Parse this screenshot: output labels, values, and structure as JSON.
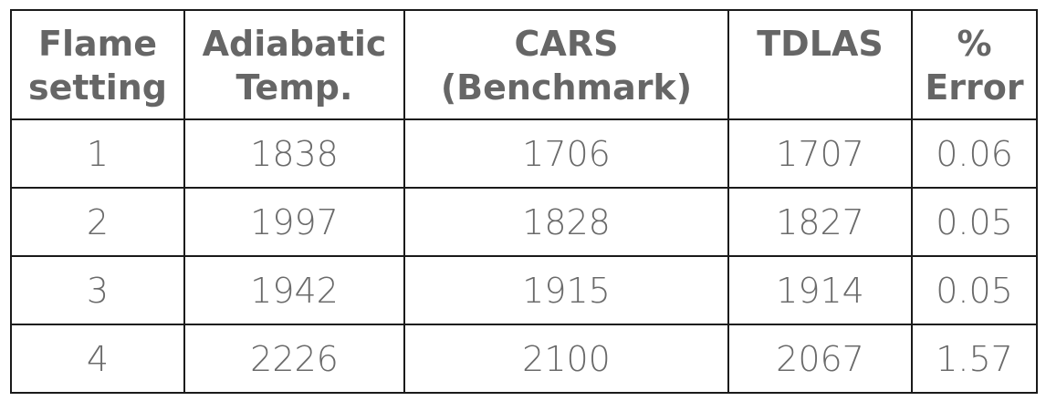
{
  "table": {
    "headers": [
      [
        "Flame",
        "setting"
      ],
      [
        "Adiabatic",
        "Temp."
      ],
      [
        "CARS",
        "(Benchmark)"
      ],
      [
        "TDLAS"
      ],
      [
        "%",
        "Error"
      ]
    ],
    "rows": [
      [
        "1",
        "1838",
        "1706",
        "1707",
        "0.06"
      ],
      [
        "2",
        "1997",
        "1828",
        "1827",
        "0.05"
      ],
      [
        "3",
        "1942",
        "1915",
        "1914",
        "0.05"
      ],
      [
        "4",
        "2226",
        "2100",
        "2067",
        "1.57"
      ]
    ]
  },
  "colors": {
    "text": "#666666",
    "border": "#1a1a1a",
    "background": "#ffffff"
  }
}
